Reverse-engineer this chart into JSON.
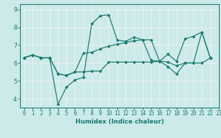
{
  "xlabel": "Humidex (Indice chaleur)",
  "bg_color": "#cceaea",
  "grid_color": "#f0f0f0",
  "line_color": "#1a7a6e",
  "xlim": [
    -0.5,
    23
  ],
  "ylim": [
    3.5,
    9.3
  ],
  "xticks": [
    0,
    1,
    2,
    3,
    4,
    5,
    6,
    7,
    8,
    9,
    10,
    11,
    12,
    13,
    14,
    15,
    16,
    17,
    18,
    19,
    20,
    21,
    22,
    23
  ],
  "yticks": [
    4,
    5,
    6,
    7,
    8,
    9
  ],
  "lines": [
    {
      "x": [
        0,
        1,
        2,
        3,
        4,
        5,
        6,
        7,
        8,
        9,
        10,
        11,
        12,
        13,
        14,
        15,
        16,
        17,
        18,
        19,
        20,
        21,
        22
      ],
      "y": [
        6.3,
        6.45,
        6.3,
        6.3,
        5.4,
        5.3,
        5.5,
        5.5,
        5.55,
        5.55,
        6.05,
        6.05,
        6.05,
        6.05,
        6.05,
        6.05,
        6.1,
        6.05,
        5.85,
        6.0,
        6.0,
        6.0,
        6.28
      ]
    },
    {
      "x": [
        0,
        1,
        2,
        3,
        4,
        5,
        6,
        7,
        8,
        9,
        10,
        11,
        12,
        13,
        14,
        15,
        16,
        17,
        18,
        19,
        20,
        21,
        22
      ],
      "y": [
        6.3,
        6.45,
        6.3,
        6.3,
        3.7,
        4.65,
        5.05,
        5.2,
        8.2,
        8.65,
        8.7,
        7.28,
        7.22,
        7.45,
        7.3,
        6.15,
        6.1,
        5.8,
        5.38,
        6.0,
        6.0,
        7.73,
        6.28
      ]
    },
    {
      "x": [
        0,
        1,
        2,
        3,
        4,
        5,
        6,
        7,
        8,
        9,
        10,
        11,
        12,
        13,
        14,
        15,
        16,
        17,
        18,
        19,
        20,
        21,
        22
      ],
      "y": [
        6.3,
        6.45,
        6.3,
        6.3,
        5.4,
        5.3,
        5.5,
        6.55,
        6.6,
        6.8,
        6.95,
        7.05,
        7.15,
        7.25,
        7.3,
        7.3,
        6.1,
        6.5,
        6.1,
        7.35,
        7.5,
        7.73,
        6.28
      ]
    }
  ]
}
